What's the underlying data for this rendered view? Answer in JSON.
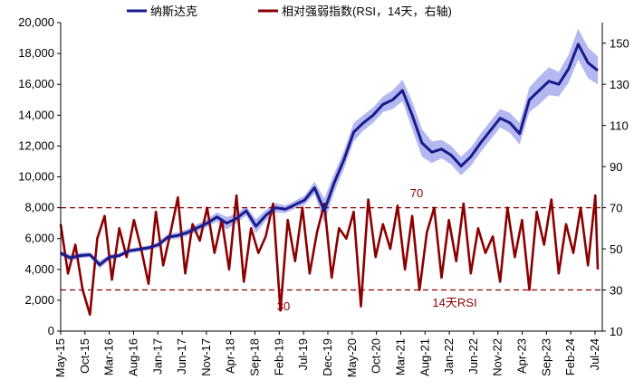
{
  "chart_data": {
    "type": "line",
    "legend": {
      "position": "top",
      "entries": [
        {
          "label": "纳斯达克",
          "color": "#1a1a8c"
        },
        {
          "label": "相对强弱指数(RSI，14天，右轴)",
          "color": "#8b0000"
        }
      ]
    },
    "y_left": {
      "range": [
        0,
        20000
      ],
      "ticks": [
        "0",
        "2,000",
        "4,000",
        "6,000",
        "8,000",
        "10,000",
        "12,000",
        "14,000",
        "16,000",
        "18,000",
        "20,000"
      ]
    },
    "y_right": {
      "range": [
        10,
        160
      ],
      "ticks": [
        "10",
        "30",
        "50",
        "70",
        "90",
        "110",
        "130",
        "150"
      ]
    },
    "x_ticks": [
      "May-15",
      "Oct-15",
      "Mar-16",
      "Aug-16",
      "Jan-17",
      "Jun-17",
      "Nov-17",
      "Apr-18",
      "Sep-18",
      "Feb-19",
      "Jul-19",
      "Dec-19",
      "May-20",
      "Oct-20",
      "Mar-21",
      "Aug-21",
      "Jan-22",
      "Jun-22",
      "Nov-22",
      "Apr-23",
      "Sep-23",
      "Feb-24",
      "Jul-24"
    ],
    "reference_lines": [
      {
        "value": 70,
        "label": "70",
        "color": "#8b0000"
      },
      {
        "value": 30,
        "label": "30",
        "color": "#8b0000"
      }
    ],
    "annotations": [
      {
        "text": "70"
      },
      {
        "text": "30"
      },
      {
        "text": "14天RSI"
      }
    ],
    "series": [
      {
        "name": "纳斯达克",
        "axis": "left",
        "color": "#1a1a8c",
        "band_color": "#b3b8f0",
        "x_months": [
          0,
          2,
          4,
          6,
          8,
          10,
          12,
          14,
          16,
          18,
          20,
          22,
          24,
          26,
          28,
          30,
          32,
          34,
          36,
          38,
          40,
          42,
          44,
          46,
          48,
          50,
          52,
          54,
          56,
          58,
          60,
          62,
          64,
          66,
          68,
          70,
          72,
          74,
          76,
          78,
          80,
          82,
          84,
          86,
          88,
          90,
          92,
          94,
          96,
          98,
          100,
          102,
          104,
          106,
          108,
          110
        ],
        "values": [
          5050,
          4750,
          4900,
          4950,
          4300,
          4800,
          4900,
          5200,
          5300,
          5400,
          5600,
          6100,
          6200,
          6400,
          6700,
          7000,
          7400,
          7000,
          7300,
          7800,
          6800,
          7500,
          8000,
          7900,
          8200,
          8500,
          9300,
          7800,
          9600,
          11100,
          12900,
          13500,
          14000,
          14700,
          15000,
          15600,
          14000,
          12200,
          11600,
          11800,
          11400,
          10700,
          11300,
          12200,
          13000,
          13800,
          13500,
          12800,
          15000,
          15600,
          16200,
          16000,
          17000,
          18600,
          17400,
          16900
        ],
        "band_halfwidth": [
          150,
          200,
          180,
          150,
          250,
          180,
          150,
          150,
          150,
          150,
          200,
          200,
          200,
          220,
          250,
          250,
          300,
          400,
          300,
          300,
          450,
          350,
          300,
          250,
          250,
          300,
          400,
          800,
          600,
          600,
          600,
          500,
          500,
          500,
          600,
          700,
          900,
          900,
          700,
          600,
          600,
          600,
          600,
          600,
          600,
          600,
          650,
          700,
          800,
          900,
          900,
          800,
          900,
          1000,
          1000,
          900
        ]
      },
      {
        "name": "相对强弱指数(RSI，14天，右轴)",
        "axis": "right",
        "color": "#8b0000",
        "x_months": [
          0,
          1.5,
          3,
          4.5,
          6,
          7.5,
          9,
          10.5,
          12,
          13.5,
          15,
          16.5,
          18,
          19.5,
          21,
          22.5,
          24,
          25.5,
          27,
          28.5,
          30,
          31.5,
          33,
          34.5,
          36,
          37.5,
          39,
          40.5,
          42,
          43.5,
          45,
          46.5,
          48,
          49.5,
          51,
          52.5,
          54,
          55.5,
          57,
          58.5,
          60,
          61.5,
          63,
          64.5,
          66,
          67.5,
          69,
          70.5,
          72,
          73.5,
          75,
          76.5,
          78,
          79.5,
          81,
          82.5,
          84,
          85.5,
          87,
          88.5,
          90,
          91.5,
          93,
          94.5,
          96,
          97.5,
          99,
          100.5,
          102,
          103.5,
          105,
          106.5,
          108,
          109.5,
          110
        ],
        "values": [
          62,
          38,
          52,
          30,
          18,
          55,
          66,
          35,
          60,
          46,
          64,
          50,
          33,
          68,
          42,
          58,
          75,
          38,
          62,
          54,
          70,
          48,
          64,
          40,
          76,
          34,
          60,
          48,
          56,
          72,
          20,
          64,
          44,
          70,
          38,
          58,
          72,
          36,
          60,
          55,
          68,
          22,
          74,
          46,
          62,
          50,
          71,
          40,
          66,
          30,
          58,
          70,
          36,
          64,
          44,
          72,
          38,
          60,
          48,
          56,
          34,
          70,
          46,
          64,
          30,
          68,
          52,
          74,
          38,
          62,
          48,
          70,
          42,
          76,
          40
        ]
      }
    ]
  }
}
